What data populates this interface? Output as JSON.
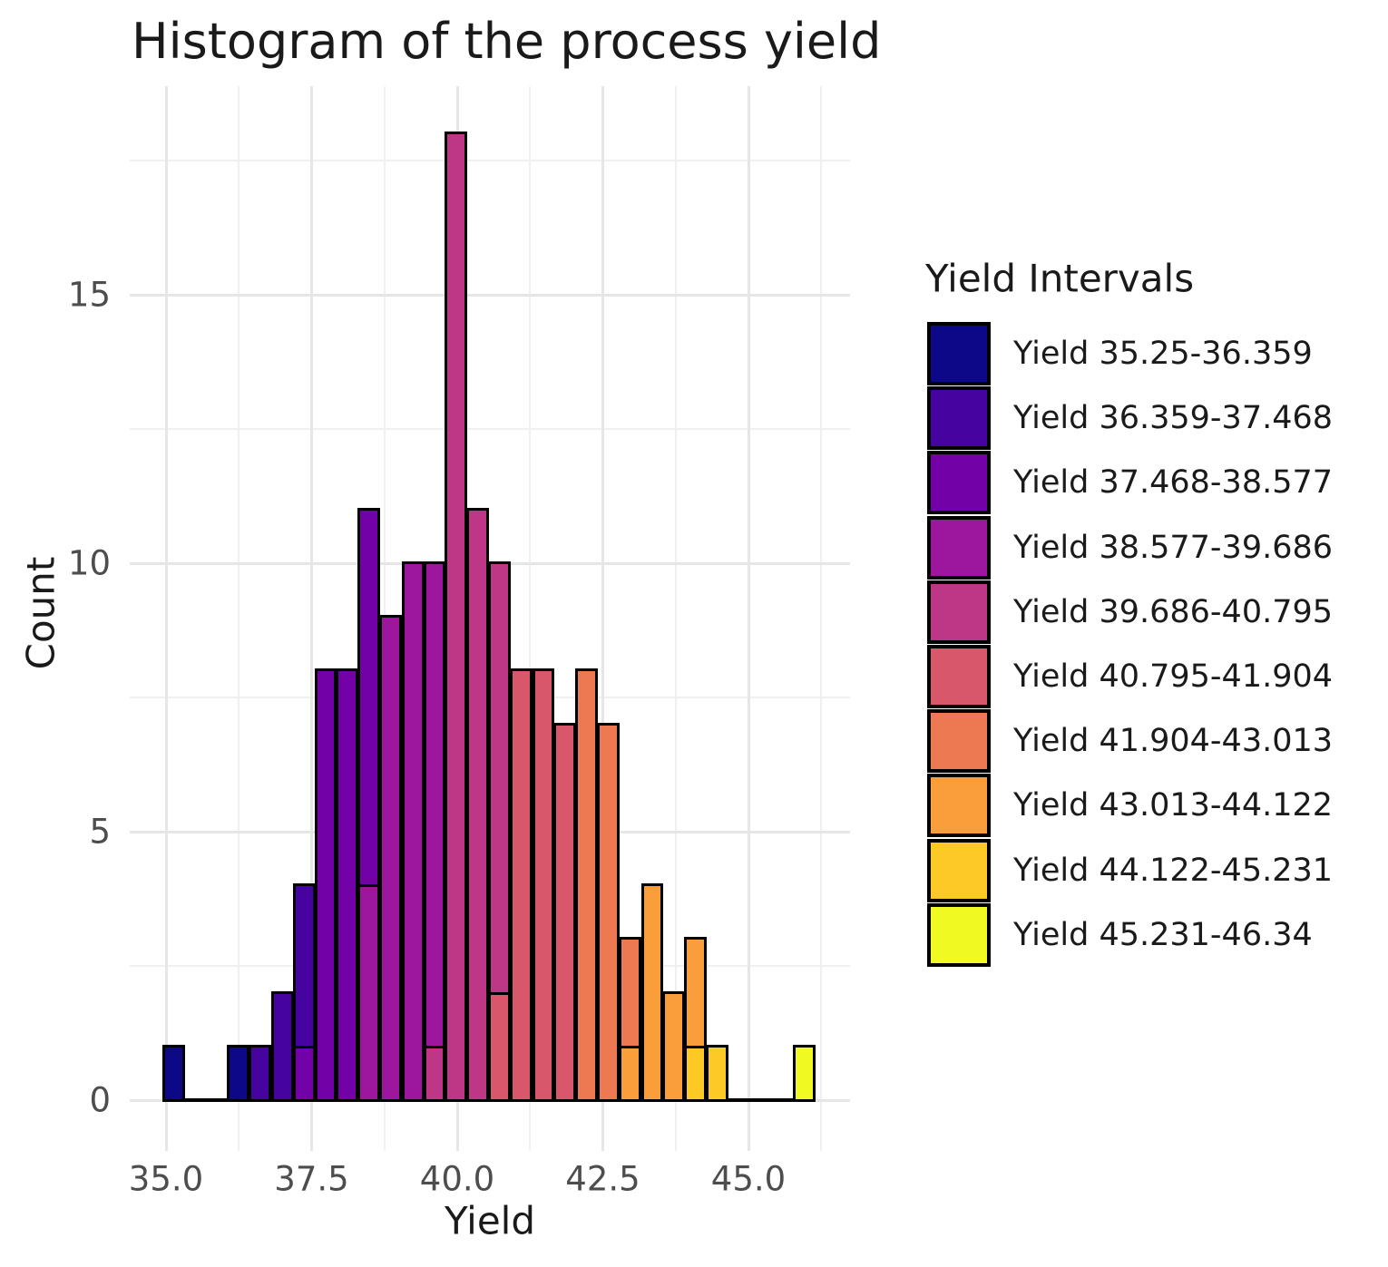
{
  "title": "Histogram of the process yield",
  "x_axis": {
    "label": "Yield",
    "tick_labels": [
      "35.0",
      "37.5",
      "40.0",
      "42.5",
      "45.0"
    ],
    "tick_values": [
      35.0,
      37.5,
      40.0,
      42.5,
      45.0
    ]
  },
  "y_axis": {
    "label": "Count",
    "tick_labels": [
      "0",
      "5",
      "10",
      "15"
    ],
    "tick_values": [
      0,
      5,
      10,
      15
    ]
  },
  "legend": {
    "title": "Yield Intervals",
    "items": [
      {
        "label": "Yield 35.25-36.359",
        "color": "#0D0887"
      },
      {
        "label": "Yield 36.359-37.468",
        "color": "#47039F"
      },
      {
        "label": "Yield 37.468-38.577",
        "color": "#7301A8"
      },
      {
        "label": "Yield 38.577-39.686",
        "color": "#9C179E"
      },
      {
        "label": "Yield 39.686-40.795",
        "color": "#BD3786"
      },
      {
        "label": "Yield 40.795-41.904",
        "color": "#D8576B"
      },
      {
        "label": "Yield 41.904-43.013",
        "color": "#ED7953"
      },
      {
        "label": "Yield 43.013-44.122",
        "color": "#FA9E3B"
      },
      {
        "label": "Yield 44.122-45.231",
        "color": "#FDC926"
      },
      {
        "label": "Yield 45.231-46.34",
        "color": "#F0F921"
      }
    ]
  },
  "chart_data": {
    "type": "bar",
    "subtype": "stacked-histogram",
    "title": "Histogram of the process yield",
    "xlabel": "Yield",
    "ylabel": "Count",
    "xlim": [
      34.38,
      46.72
    ],
    "ylim": [
      -0.9,
      18.9
    ],
    "grid": true,
    "legend_position": "right",
    "bin_width": 0.3738,
    "max_count": 18,
    "total_observations": 156,
    "totals_by_interval": [
      2,
      6,
      24,
      32,
      38,
      25,
      17,
      9,
      2,
      1
    ],
    "bins": [
      {
        "x0": 34.938,
        "x1": 35.312,
        "segments": [
          {
            "interval": 1,
            "count": 1
          }
        ]
      },
      {
        "x0": 35.312,
        "x1": 35.686,
        "segments": []
      },
      {
        "x0": 35.686,
        "x1": 36.059,
        "segments": []
      },
      {
        "x0": 36.059,
        "x1": 36.433,
        "segments": [
          {
            "interval": 1,
            "count": 1
          }
        ]
      },
      {
        "x0": 36.433,
        "x1": 36.807,
        "segments": [
          {
            "interval": 2,
            "count": 1
          }
        ]
      },
      {
        "x0": 36.807,
        "x1": 37.181,
        "segments": [
          {
            "interval": 2,
            "count": 2
          }
        ]
      },
      {
        "x0": 37.181,
        "x1": 37.555,
        "segments": [
          {
            "interval": 3,
            "count": 1
          },
          {
            "interval": 2,
            "count": 3
          }
        ]
      },
      {
        "x0": 37.555,
        "x1": 37.928,
        "segments": [
          {
            "interval": 3,
            "count": 8
          }
        ]
      },
      {
        "x0": 37.928,
        "x1": 38.302,
        "segments": [
          {
            "interval": 3,
            "count": 8
          }
        ]
      },
      {
        "x0": 38.302,
        "x1": 38.676,
        "segments": [
          {
            "interval": 4,
            "count": 4
          },
          {
            "interval": 3,
            "count": 7
          }
        ]
      },
      {
        "x0": 38.676,
        "x1": 39.05,
        "segments": [
          {
            "interval": 4,
            "count": 9
          }
        ]
      },
      {
        "x0": 39.05,
        "x1": 39.424,
        "segments": [
          {
            "interval": 4,
            "count": 10
          }
        ]
      },
      {
        "x0": 39.424,
        "x1": 39.797,
        "segments": [
          {
            "interval": 5,
            "count": 1
          },
          {
            "interval": 4,
            "count": 9
          }
        ]
      },
      {
        "x0": 39.797,
        "x1": 40.171,
        "segments": [
          {
            "interval": 5,
            "count": 18
          }
        ]
      },
      {
        "x0": 40.171,
        "x1": 40.545,
        "segments": [
          {
            "interval": 5,
            "count": 11
          }
        ]
      },
      {
        "x0": 40.545,
        "x1": 40.919,
        "segments": [
          {
            "interval": 6,
            "count": 2
          },
          {
            "interval": 5,
            "count": 8
          }
        ]
      },
      {
        "x0": 40.919,
        "x1": 41.293,
        "segments": [
          {
            "interval": 6,
            "count": 8
          }
        ]
      },
      {
        "x0": 41.293,
        "x1": 41.666,
        "segments": [
          {
            "interval": 6,
            "count": 8
          }
        ]
      },
      {
        "x0": 41.666,
        "x1": 42.04,
        "segments": [
          {
            "interval": 6,
            "count": 7
          }
        ]
      },
      {
        "x0": 42.04,
        "x1": 42.414,
        "segments": [
          {
            "interval": 7,
            "count": 8
          }
        ]
      },
      {
        "x0": 42.414,
        "x1": 42.788,
        "segments": [
          {
            "interval": 7,
            "count": 7
          }
        ]
      },
      {
        "x0": 42.788,
        "x1": 43.162,
        "segments": [
          {
            "interval": 8,
            "count": 1
          },
          {
            "interval": 7,
            "count": 2
          }
        ]
      },
      {
        "x0": 43.162,
        "x1": 43.535,
        "segments": [
          {
            "interval": 8,
            "count": 4
          }
        ]
      },
      {
        "x0": 43.535,
        "x1": 43.909,
        "segments": [
          {
            "interval": 8,
            "count": 2
          }
        ]
      },
      {
        "x0": 43.909,
        "x1": 44.283,
        "segments": [
          {
            "interval": 9,
            "count": 1
          },
          {
            "interval": 8,
            "count": 2
          }
        ]
      },
      {
        "x0": 44.283,
        "x1": 44.657,
        "segments": [
          {
            "interval": 9,
            "count": 1
          }
        ]
      },
      {
        "x0": 44.657,
        "x1": 45.031,
        "segments": []
      },
      {
        "x0": 45.031,
        "x1": 45.404,
        "segments": []
      },
      {
        "x0": 45.404,
        "x1": 45.778,
        "segments": []
      },
      {
        "x0": 45.778,
        "x1": 46.152,
        "segments": [
          {
            "interval": 10,
            "count": 1
          }
        ]
      }
    ]
  }
}
